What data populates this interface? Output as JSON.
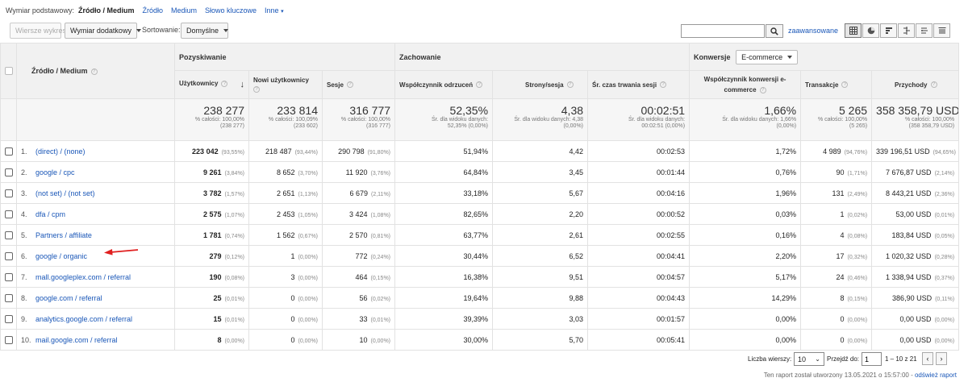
{
  "dimension_bar": {
    "label": "Wymiar podstawowy:",
    "current": "Źródło / Medium",
    "options": [
      "Źródło",
      "Medium",
      "Słowo kluczowe",
      "Inne"
    ]
  },
  "toolbar": {
    "plot_rows": "Wiersze wykresu",
    "secondary_dimension": "Wymiar dodatkowy",
    "sort_label": "Sortowanie:",
    "sort_value": "Domyślne",
    "search_placeholder": "",
    "advanced": "zaawansowane"
  },
  "table": {
    "dimension_header": "Źródło / Medium",
    "group_acquisition": "Pozyskiwanie",
    "group_behavior": "Zachowanie",
    "group_conversions": "Konwersje",
    "conversion_select": "E-commerce",
    "columns": [
      "Użytkownicy",
      "Nowi użytkownicy",
      "Sesje",
      "Współczynnik odrzuceń",
      "Strony/sesja",
      "Śr. czas trwania sesji",
      "Współczynnik konwersji e-commerce",
      "Transakcje",
      "Przychody"
    ],
    "totals": [
      {
        "value": "238 277",
        "sub1": "% całości: 100,00%",
        "sub2": "(238 277)"
      },
      {
        "value": "233 814",
        "sub1": "% całości: 100,09%",
        "sub2": "(233 602)"
      },
      {
        "value": "316 777",
        "sub1": "% całości: 100,00%",
        "sub2": "(316 777)"
      },
      {
        "value": "52,35%",
        "sub1": "Śr. dla widoku danych:",
        "sub2": "52,35% (0,00%)"
      },
      {
        "value": "4,38",
        "sub1": "Śr. dla widoku danych: 4,38",
        "sub2": "(0,00%)"
      },
      {
        "value": "00:02:51",
        "sub1": "Śr. dla widoku danych:",
        "sub2": "00:02:51 (0,00%)"
      },
      {
        "value": "1,66%",
        "sub1": "Śr. dla widoku danych: 1,66%",
        "sub2": "(0,00%)"
      },
      {
        "value": "5 265",
        "sub1": "% całości: 100,00%",
        "sub2": "(5 265)"
      },
      {
        "value": "358 358,79 USD",
        "sub1": "% całości: 100,00%",
        "sub2": "(358 358,79 USD)"
      }
    ],
    "rows": [
      {
        "n": "1.",
        "source": "(direct) / (none)",
        "users": "223 042",
        "users_p": "(93,55%)",
        "new_users": "218 487",
        "new_users_p": "(93,44%)",
        "sessions": "290 798",
        "sessions_p": "(91,80%)",
        "bounce": "51,94%",
        "pages": "4,42",
        "duration": "00:02:53",
        "conv": "1,72%",
        "trans": "4 989",
        "trans_p": "(94,76%)",
        "revenue": "339 196,51 USD",
        "revenue_p": "(94,65%)"
      },
      {
        "n": "2.",
        "source": "google / cpc",
        "users": "9 261",
        "users_p": "(3,84%)",
        "new_users": "8 652",
        "new_users_p": "(3,70%)",
        "sessions": "11 920",
        "sessions_p": "(3,76%)",
        "bounce": "64,84%",
        "pages": "3,45",
        "duration": "00:01:44",
        "conv": "0,76%",
        "trans": "90",
        "trans_p": "(1,71%)",
        "revenue": "7 676,87 USD",
        "revenue_p": "(2,14%)"
      },
      {
        "n": "3.",
        "source": "(not set) / (not set)",
        "users": "3 782",
        "users_p": "(1,57%)",
        "new_users": "2 651",
        "new_users_p": "(1,13%)",
        "sessions": "6 679",
        "sessions_p": "(2,11%)",
        "bounce": "33,18%",
        "pages": "5,67",
        "duration": "00:04:16",
        "conv": "1,96%",
        "trans": "131",
        "trans_p": "(2,49%)",
        "revenue": "8 443,21 USD",
        "revenue_p": "(2,36%)"
      },
      {
        "n": "4.",
        "source": "dfa / cpm",
        "users": "2 575",
        "users_p": "(1,07%)",
        "new_users": "2 453",
        "new_users_p": "(1,05%)",
        "sessions": "3 424",
        "sessions_p": "(1,08%)",
        "bounce": "82,65%",
        "pages": "2,20",
        "duration": "00:00:52",
        "conv": "0,03%",
        "trans": "1",
        "trans_p": "(0,02%)",
        "revenue": "53,00 USD",
        "revenue_p": "(0,01%)"
      },
      {
        "n": "5.",
        "source": "Partners / affiliate",
        "users": "1 781",
        "users_p": "(0,74%)",
        "new_users": "1 562",
        "new_users_p": "(0,67%)",
        "sessions": "2 570",
        "sessions_p": "(0,81%)",
        "bounce": "63,77%",
        "pages": "2,61",
        "duration": "00:02:55",
        "conv": "0,16%",
        "trans": "4",
        "trans_p": "(0,08%)",
        "revenue": "183,84 USD",
        "revenue_p": "(0,05%)"
      },
      {
        "n": "6.",
        "source": "google / organic",
        "users": "279",
        "users_p": "(0,12%)",
        "new_users": "1",
        "new_users_p": "(0,00%)",
        "sessions": "772",
        "sessions_p": "(0,24%)",
        "bounce": "30,44%",
        "pages": "6,52",
        "duration": "00:04:41",
        "conv": "2,20%",
        "trans": "17",
        "trans_p": "(0,32%)",
        "revenue": "1 020,32 USD",
        "revenue_p": "(0,28%)"
      },
      {
        "n": "7.",
        "source": "mall.googleplex.com / referral",
        "users": "190",
        "users_p": "(0,08%)",
        "new_users": "3",
        "new_users_p": "(0,00%)",
        "sessions": "464",
        "sessions_p": "(0,15%)",
        "bounce": "16,38%",
        "pages": "9,51",
        "duration": "00:04:57",
        "conv": "5,17%",
        "trans": "24",
        "trans_p": "(0,46%)",
        "revenue": "1 338,94 USD",
        "revenue_p": "(0,37%)"
      },
      {
        "n": "8.",
        "source": "google.com / referral",
        "users": "25",
        "users_p": "(0,01%)",
        "new_users": "0",
        "new_users_p": "(0,00%)",
        "sessions": "56",
        "sessions_p": "(0,02%)",
        "bounce": "19,64%",
        "pages": "9,88",
        "duration": "00:04:43",
        "conv": "14,29%",
        "trans": "8",
        "trans_p": "(0,15%)",
        "revenue": "386,90 USD",
        "revenue_p": "(0,11%)"
      },
      {
        "n": "9.",
        "source": "analytics.google.com / referral",
        "users": "15",
        "users_p": "(0,01%)",
        "new_users": "0",
        "new_users_p": "(0,00%)",
        "sessions": "33",
        "sessions_p": "(0,01%)",
        "bounce": "39,39%",
        "pages": "3,03",
        "duration": "00:01:57",
        "conv": "0,00%",
        "trans": "0",
        "trans_p": "(0,00%)",
        "revenue": "0,00 USD",
        "revenue_p": "(0,00%)"
      },
      {
        "n": "10.",
        "source": "mail.google.com / referral",
        "users": "8",
        "users_p": "(0,00%)",
        "new_users": "0",
        "new_users_p": "(0,00%)",
        "sessions": "10",
        "sessions_p": "(0,00%)",
        "bounce": "30,00%",
        "pages": "5,70",
        "duration": "00:05:41",
        "conv": "0,00%",
        "trans": "0",
        "trans_p": "(0,00%)",
        "revenue": "0,00 USD",
        "revenue_p": "(0,00%)"
      }
    ]
  },
  "footer": {
    "rows_label": "Liczba wierszy:",
    "rows_value": "10",
    "goto_label": "Przejdź do:",
    "goto_value": "1",
    "range": "1 – 10 z 21",
    "note": "Ten raport został utworzony 13.05.2021 o 15:57:00 -",
    "refresh": "odśwież raport"
  },
  "colors": {
    "link": "#1a57b8",
    "arrow": "#e02020"
  }
}
